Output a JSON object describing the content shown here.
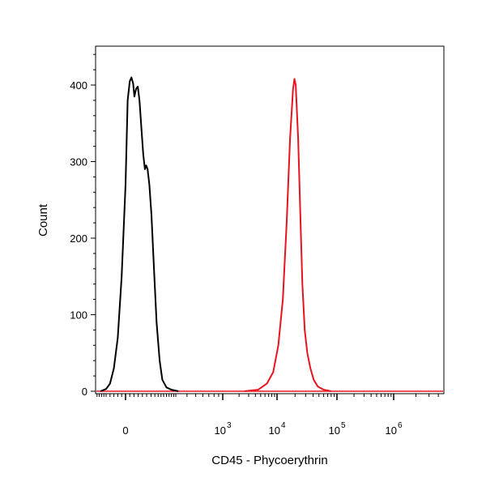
{
  "chart_data": {
    "type": "line",
    "title": "",
    "xlabel": "CD45 - Phycoerythrin",
    "ylabel": "Count",
    "x_scale": "biexponential",
    "ylim": [
      0,
      450
    ],
    "y_ticks": [
      {
        "value": 0,
        "label": "0"
      },
      {
        "value": 100,
        "label": "100"
      },
      {
        "value": 200,
        "label": "200"
      },
      {
        "value": 300,
        "label": "300"
      },
      {
        "value": 400,
        "label": "400"
      }
    ],
    "x_ticks": [
      {
        "value": 0,
        "base": "0",
        "exp": ""
      },
      {
        "value": 1000,
        "base": "10",
        "exp": "3"
      },
      {
        "value": 10000,
        "base": "10",
        "exp": "4"
      },
      {
        "value": 100000,
        "base": "10",
        "exp": "5"
      },
      {
        "value": 1000000,
        "base": "10",
        "exp": "6"
      }
    ],
    "grid": false,
    "legend": "none",
    "series": [
      {
        "color": "#000000",
        "points": [
          [
            -150,
            0
          ],
          [
            -100,
            3
          ],
          [
            -80,
            10
          ],
          [
            -60,
            30
          ],
          [
            -40,
            70
          ],
          [
            -20,
            150
          ],
          [
            0,
            270
          ],
          [
            10,
            380
          ],
          [
            20,
            405
          ],
          [
            28,
            410
          ],
          [
            36,
            402
          ],
          [
            42,
            385
          ],
          [
            50,
            395
          ],
          [
            58,
            398
          ],
          [
            66,
            380
          ],
          [
            76,
            340
          ],
          [
            84,
            310
          ],
          [
            92,
            290
          ],
          [
            98,
            295
          ],
          [
            104,
            290
          ],
          [
            112,
            270
          ],
          [
            122,
            230
          ],
          [
            135,
            160
          ],
          [
            150,
            90
          ],
          [
            170,
            40
          ],
          [
            190,
            15
          ],
          [
            220,
            5
          ],
          [
            260,
            2
          ],
          [
            320,
            0
          ]
        ]
      },
      {
        "color": "#e8141e",
        "points": [
          [
            2500,
            0
          ],
          [
            4500,
            2
          ],
          [
            6500,
            10
          ],
          [
            8500,
            25
          ],
          [
            10500,
            60
          ],
          [
            12500,
            120
          ],
          [
            14500,
            220
          ],
          [
            16500,
            330
          ],
          [
            18500,
            395
          ],
          [
            19500,
            408
          ],
          [
            20500,
            400
          ],
          [
            22500,
            330
          ],
          [
            24500,
            230
          ],
          [
            26500,
            140
          ],
          [
            29000,
            80
          ],
          [
            32000,
            50
          ],
          [
            36000,
            30
          ],
          [
            41000,
            15
          ],
          [
            48000,
            6
          ],
          [
            60000,
            2
          ],
          [
            80000,
            0
          ]
        ]
      }
    ]
  }
}
